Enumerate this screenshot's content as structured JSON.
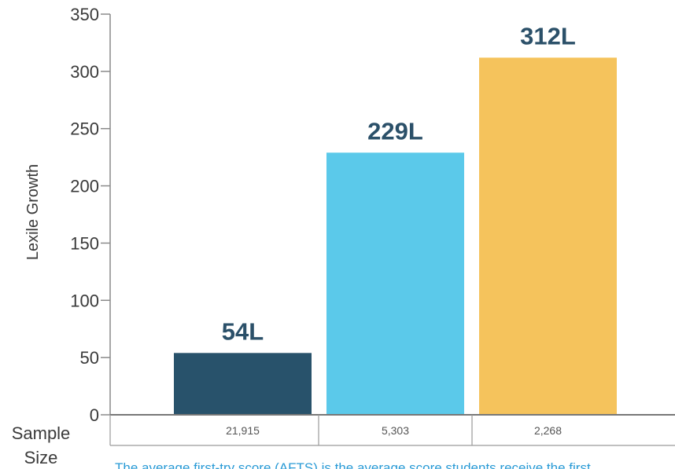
{
  "chart_data": {
    "type": "bar",
    "title": "",
    "xlabel": "",
    "ylabel": "Lexile Growth",
    "ylim": [
      0,
      350
    ],
    "yticks": [
      0,
      50,
      100,
      150,
      200,
      250,
      300,
      350
    ],
    "grid": false,
    "legend": "none",
    "categories": [
      "",
      "",
      ""
    ],
    "values": [
      54,
      229,
      312
    ],
    "data_labels": [
      "54L",
      "229L",
      "312L"
    ],
    "colors": [
      "#28526b",
      "#5bc9ea",
      "#f5c35c"
    ],
    "label_color": "#2b5069",
    "sample_size": {
      "title_line1": "Sample",
      "title_line2": "Size",
      "values": [
        "21,915",
        "5,303",
        "2,268"
      ]
    },
    "footnote": "The average first-try score (AFTS) is the average score students receive the first"
  }
}
